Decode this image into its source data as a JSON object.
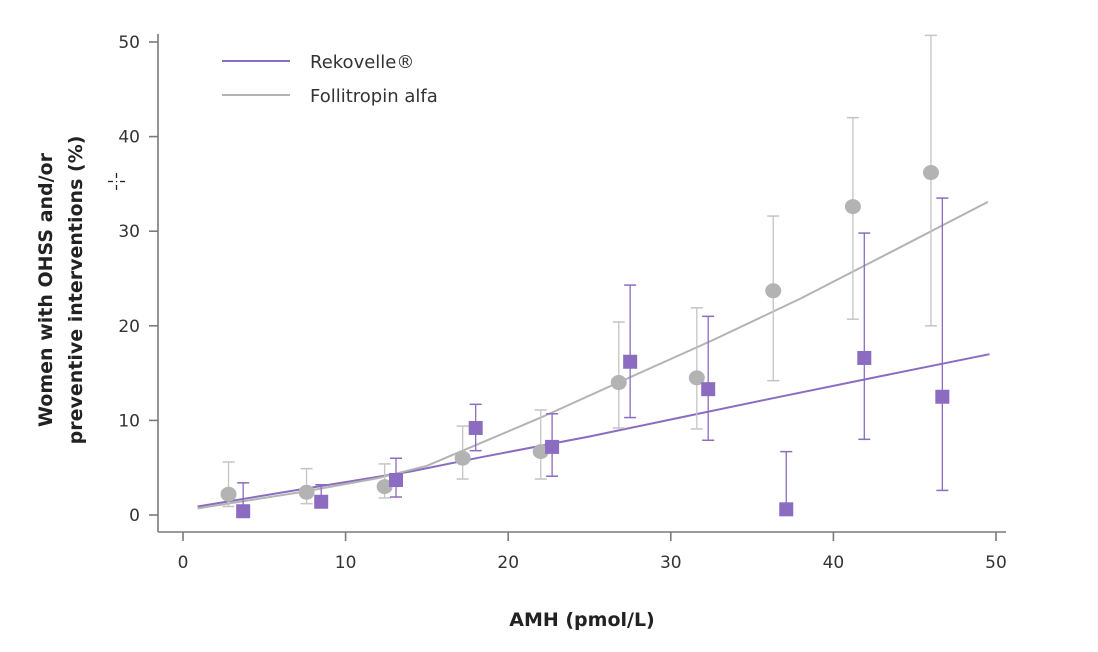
{
  "chart_data": {
    "type": "scatter",
    "title": "",
    "xlabel": "AMH (pmol/L)",
    "ylabel_lines": [
      "Women with OHSS and/or",
      "preventive interventions (%)"
    ],
    "xlim": [
      0,
      50
    ],
    "ylim": [
      0,
      50
    ],
    "x_ticks": [
      0,
      10,
      20,
      30,
      40,
      50
    ],
    "y_ticks": [
      0,
      10,
      20,
      30,
      40,
      50
    ],
    "x_tick_labels": [
      "0",
      "10",
      "20",
      "30",
      "40",
      "50"
    ],
    "y_tick_labels": [
      "0",
      "10",
      "20",
      "30",
      "40",
      "50"
    ],
    "grid": false,
    "legend_position": "top-left",
    "legend": [
      {
        "name": "Rekovelle®",
        "color": "#8b6cc0"
      },
      {
        "name": "Follitropin alfa",
        "color": "#b3b3b3"
      }
    ],
    "series": [
      {
        "name": "Rekovelle®",
        "marker": "square",
        "color": "#8b6cc0",
        "points": [
          {
            "x": 3.7,
            "y": 0.4,
            "lo": 0.4,
            "hi": 3.4
          },
          {
            "x": 8.5,
            "y": 1.4,
            "lo": 1.4,
            "hi": 3.2
          },
          {
            "x": 13.1,
            "y": 3.7,
            "lo": 1.9,
            "hi": 6.0
          },
          {
            "x": 18.0,
            "y": 9.2,
            "lo": 6.8,
            "hi": 11.7
          },
          {
            "x": 22.7,
            "y": 7.2,
            "lo": 4.1,
            "hi": 10.7
          },
          {
            "x": 27.5,
            "y": 16.2,
            "lo": 10.3,
            "hi": 24.3
          },
          {
            "x": 32.3,
            "y": 13.3,
            "lo": 7.9,
            "hi": 21.0
          },
          {
            "x": 37.1,
            "y": 0.6,
            "lo": 0.6,
            "hi": 6.7
          },
          {
            "x": 41.9,
            "y": 16.6,
            "lo": 8.0,
            "hi": 29.8
          },
          {
            "x": 46.7,
            "y": 12.5,
            "lo": 2.6,
            "hi": 33.5
          }
        ],
        "fit_line": [
          {
            "x": 0.9,
            "y": 0.9
          },
          {
            "x": 7.2,
            "y": 2.7
          },
          {
            "x": 14,
            "y": 4.6
          },
          {
            "x": 18.3,
            "y": 6.1
          },
          {
            "x": 25,
            "y": 8.3
          },
          {
            "x": 30,
            "y": 10.1
          },
          {
            "x": 36.7,
            "y": 12.5
          },
          {
            "x": 43,
            "y": 14.7
          },
          {
            "x": 49.6,
            "y": 17.0
          }
        ]
      },
      {
        "name": "Follitropin alfa",
        "marker": "circle",
        "color": "#b3b3b3",
        "points": [
          {
            "x": 2.8,
            "y": 2.2,
            "lo": 0.9,
            "hi": 5.6
          },
          {
            "x": 7.6,
            "y": 2.4,
            "lo": 1.2,
            "hi": 4.9
          },
          {
            "x": 12.4,
            "y": 3.0,
            "lo": 1.8,
            "hi": 5.4
          },
          {
            "x": 17.2,
            "y": 6.0,
            "lo": 3.8,
            "hi": 9.4
          },
          {
            "x": 22.0,
            "y": 6.7,
            "lo": 3.8,
            "hi": 11.1
          },
          {
            "x": 26.8,
            "y": 14.0,
            "lo": 9.2,
            "hi": 20.4
          },
          {
            "x": 31.6,
            "y": 14.5,
            "lo": 9.1,
            "hi": 21.9
          },
          {
            "x": 36.3,
            "y": 23.7,
            "lo": 14.2,
            "hi": 31.6
          },
          {
            "x": 41.2,
            "y": 32.6,
            "lo": 20.7,
            "hi": 42.0
          },
          {
            "x": 46.0,
            "y": 36.2,
            "lo": 20.0,
            "hi": 50.7
          }
        ],
        "fit_line": [
          {
            "x": 0.9,
            "y": 0.7
          },
          {
            "x": 7.2,
            "y": 2.4
          },
          {
            "x": 12,
            "y": 3.9
          },
          {
            "x": 15,
            "y": 5.2
          },
          {
            "x": 18.3,
            "y": 7.6
          },
          {
            "x": 22,
            "y": 10.3
          },
          {
            "x": 26.9,
            "y": 14.1
          },
          {
            "x": 32.6,
            "y": 18.5
          },
          {
            "x": 38,
            "y": 22.9
          },
          {
            "x": 44,
            "y": 28.2
          },
          {
            "x": 49.5,
            "y": 33.1
          }
        ]
      }
    ]
  },
  "cursor": {
    "icon": "crosshair-cursor-icon"
  }
}
